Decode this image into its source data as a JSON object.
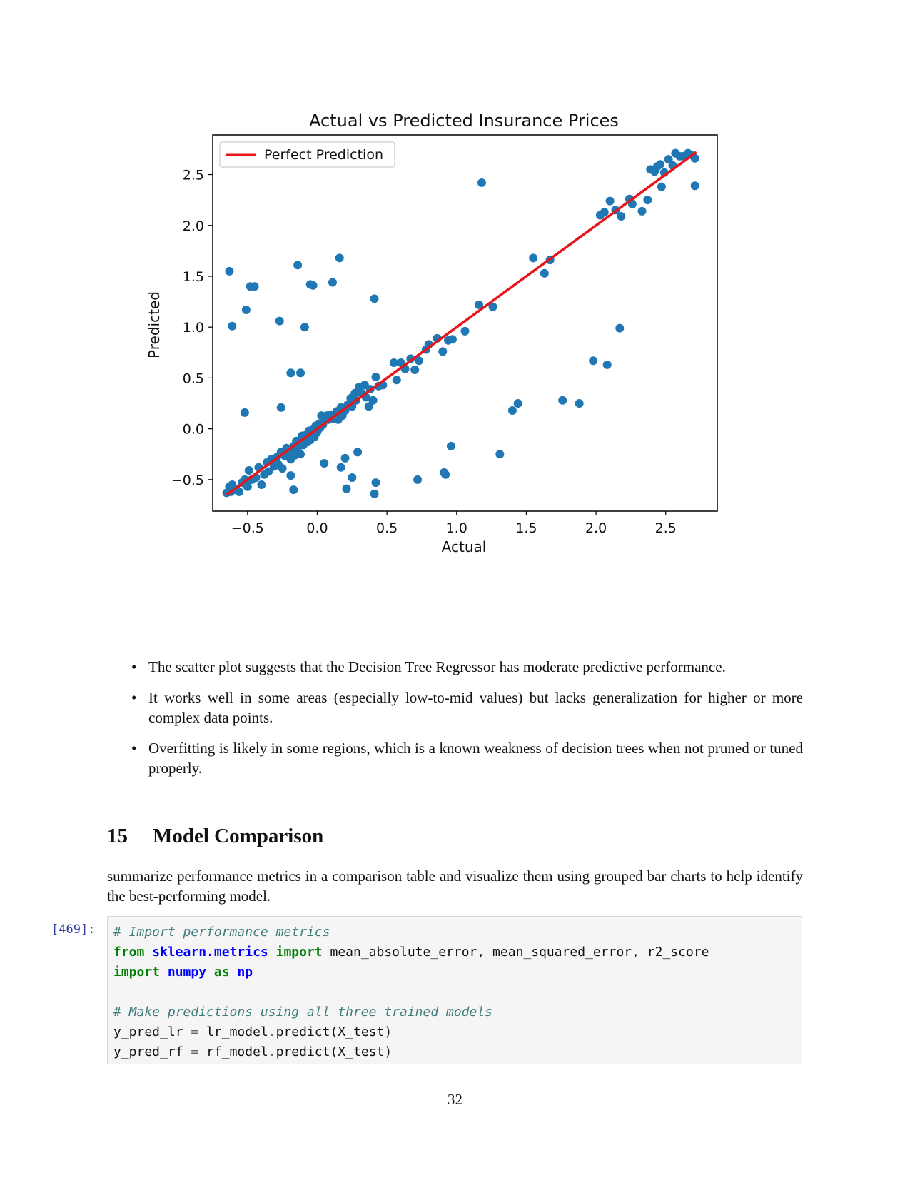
{
  "chart_data": {
    "type": "scatter",
    "title": "Actual vs Predicted Insurance Prices",
    "xlabel": "Actual",
    "ylabel": "Predicted",
    "xlim": [
      -0.75,
      2.87
    ],
    "ylim": [
      -0.81,
      2.89
    ],
    "xticks": [
      -0.5,
      0.0,
      0.5,
      1.0,
      1.5,
      2.0,
      2.5
    ],
    "yticks": [
      -0.5,
      0.0,
      0.5,
      1.0,
      1.5,
      2.0,
      2.5
    ],
    "xtick_labels": [
      "−0.5",
      "0.0",
      "0.5",
      "1.0",
      "1.5",
      "2.0",
      "2.5"
    ],
    "ytick_labels": [
      "−0.5",
      "0.0",
      "0.5",
      "1.0",
      "1.5",
      "2.0",
      "2.5"
    ],
    "legend": {
      "position": "top-left",
      "entries": [
        "Perfect Prediction"
      ]
    },
    "grid": false,
    "colors": {
      "points": "#1f77b4",
      "line": "#e8141a"
    },
    "line": {
      "name": "Perfect Prediction",
      "x": [
        -0.65,
        2.72
      ],
      "y": [
        -0.65,
        2.72
      ]
    },
    "points": [
      [
        -0.65,
        -0.63
      ],
      [
        -0.63,
        -0.57
      ],
      [
        -0.62,
        -0.62
      ],
      [
        -0.61,
        -0.55
      ],
      [
        -0.58,
        -0.6
      ],
      [
        -0.56,
        -0.62
      ],
      [
        -0.54,
        -0.53
      ],
      [
        -0.52,
        -0.5
      ],
      [
        -0.5,
        -0.57
      ],
      [
        -0.49,
        -0.41
      ],
      [
        -0.47,
        -0.5
      ],
      [
        -0.44,
        -0.48
      ],
      [
        -0.42,
        -0.38
      ],
      [
        -0.4,
        -0.55
      ],
      [
        -0.38,
        -0.45
      ],
      [
        -0.36,
        -0.33
      ],
      [
        -0.35,
        -0.42
      ],
      [
        -0.33,
        -0.3
      ],
      [
        -0.31,
        -0.37
      ],
      [
        -0.29,
        -0.28
      ],
      [
        -0.28,
        -0.35
      ],
      [
        -0.26,
        -0.23
      ],
      [
        -0.25,
        -0.39
      ],
      [
        -0.23,
        -0.27
      ],
      [
        -0.22,
        -0.19
      ],
      [
        -0.2,
        -0.25
      ],
      [
        -0.19,
        -0.3
      ],
      [
        -0.18,
        -0.2
      ],
      [
        -0.17,
        -0.17
      ],
      [
        -0.16,
        -0.26
      ],
      [
        -0.15,
        -0.12
      ],
      [
        -0.14,
        -0.22
      ],
      [
        -0.13,
        -0.15
      ],
      [
        -0.12,
        -0.25
      ],
      [
        -0.11,
        -0.07
      ],
      [
        -0.1,
        -0.16
      ],
      [
        -0.09,
        -0.1
      ],
      [
        -0.08,
        -0.06
      ],
      [
        -0.07,
        -0.13
      ],
      [
        -0.06,
        -0.02
      ],
      [
        -0.05,
        -0.11
      ],
      [
        -0.04,
        -0.04
      ],
      [
        -0.03,
        0.0
      ],
      [
        -0.02,
        -0.08
      ],
      [
        -0.01,
        0.03
      ],
      [
        0.0,
        -0.03
      ],
      [
        0.01,
        0.05
      ],
      [
        0.02,
        0.01
      ],
      [
        0.03,
        0.13
      ],
      [
        0.04,
        0.04
      ],
      [
        0.05,
        0.08
      ],
      [
        0.06,
        0.11
      ],
      [
        0.07,
        0.13
      ],
      [
        0.08,
        0.09
      ],
      [
        0.1,
        0.14
      ],
      [
        0.12,
        0.1
      ],
      [
        0.14,
        0.17
      ],
      [
        0.15,
        0.09
      ],
      [
        0.17,
        0.21
      ],
      [
        0.18,
        0.13
      ],
      [
        0.2,
        0.18
      ],
      [
        0.22,
        0.24
      ],
      [
        0.24,
        0.3
      ],
      [
        0.25,
        0.22
      ],
      [
        0.27,
        0.35
      ],
      [
        0.28,
        0.28
      ],
      [
        0.3,
        0.41
      ],
      [
        0.32,
        0.35
      ],
      [
        0.34,
        0.43
      ],
      [
        0.35,
        0.31
      ],
      [
        0.37,
        0.22
      ],
      [
        0.38,
        0.39
      ],
      [
        0.4,
        0.28
      ],
      [
        0.42,
        0.51
      ],
      [
        0.44,
        0.42
      ],
      [
        0.47,
        0.43
      ],
      [
        0.55,
        0.65
      ],
      [
        0.57,
        0.48
      ],
      [
        0.6,
        0.65
      ],
      [
        0.63,
        0.59
      ],
      [
        0.67,
        0.69
      ],
      [
        0.7,
        0.58
      ],
      [
        0.73,
        0.67
      ],
      [
        0.78,
        0.78
      ],
      [
        0.8,
        0.83
      ],
      [
        0.86,
        0.89
      ],
      [
        0.9,
        0.76
      ],
      [
        0.94,
        0.87
      ],
      [
        0.97,
        0.88
      ],
      [
        1.06,
        0.96
      ],
      [
        1.16,
        1.22
      ],
      [
        1.26,
        1.2
      ],
      [
        1.55,
        1.68
      ],
      [
        1.63,
        1.53
      ],
      [
        1.67,
        1.66
      ],
      [
        2.03,
        2.1
      ],
      [
        2.06,
        2.13
      ],
      [
        2.1,
        2.24
      ],
      [
        2.14,
        2.15
      ],
      [
        2.18,
        2.09
      ],
      [
        2.24,
        2.26
      ],
      [
        2.26,
        2.21
      ],
      [
        2.33,
        2.14
      ],
      [
        2.37,
        2.25
      ],
      [
        2.39,
        2.55
      ],
      [
        2.42,
        2.53
      ],
      [
        2.44,
        2.58
      ],
      [
        2.46,
        2.6
      ],
      [
        2.47,
        2.38
      ],
      [
        2.49,
        2.52
      ],
      [
        2.52,
        2.65
      ],
      [
        2.55,
        2.59
      ],
      [
        2.57,
        2.71
      ],
      [
        2.6,
        2.68
      ],
      [
        2.63,
        2.68
      ],
      [
        2.66,
        2.71
      ],
      [
        2.69,
        2.69
      ],
      [
        2.71,
        2.66
      ],
      [
        2.71,
        2.39
      ],
      [
        -0.63,
        1.55
      ],
      [
        -0.61,
        1.01
      ],
      [
        -0.51,
        1.17
      ],
      [
        -0.48,
        1.4
      ],
      [
        -0.45,
        1.4
      ],
      [
        -0.27,
        1.06
      ],
      [
        -0.14,
        1.61
      ],
      [
        -0.09,
        1.0
      ],
      [
        -0.05,
        1.42
      ],
      [
        -0.03,
        1.41
      ],
      [
        0.11,
        1.44
      ],
      [
        0.16,
        1.68
      ],
      [
        0.41,
        1.28
      ],
      [
        -0.19,
        0.55
      ],
      [
        -0.12,
        0.55
      ],
      [
        -0.52,
        0.16
      ],
      [
        -0.26,
        0.21
      ],
      [
        -0.19,
        -0.46
      ],
      [
        -0.17,
        -0.6
      ],
      [
        0.05,
        -0.34
      ],
      [
        0.17,
        -0.38
      ],
      [
        0.2,
        -0.29
      ],
      [
        0.21,
        -0.59
      ],
      [
        0.25,
        -0.48
      ],
      [
        0.29,
        -0.23
      ],
      [
        0.41,
        -0.64
      ],
      [
        0.42,
        -0.53
      ],
      [
        0.72,
        -0.5
      ],
      [
        0.91,
        -0.43
      ],
      [
        0.92,
        -0.45
      ],
      [
        0.96,
        -0.17
      ],
      [
        1.18,
        2.42
      ],
      [
        1.31,
        -0.25
      ],
      [
        1.4,
        0.18
      ],
      [
        1.44,
        0.25
      ],
      [
        1.76,
        0.28
      ],
      [
        1.88,
        0.25
      ],
      [
        1.98,
        0.67
      ],
      [
        2.08,
        0.63
      ],
      [
        2.17,
        0.99
      ]
    ]
  },
  "bullets": [
    "The scatter plot suggests that the Decision Tree Regressor has moderate predictive performance.",
    "It works well in some areas (especially low-to-mid values) but lacks generalization for higher or more complex data points.",
    "Overfitting is likely in some regions, which is a known weakness of decision trees when not pruned or tuned properly."
  ],
  "section": {
    "number": "15",
    "title": "Model Comparison"
  },
  "intro": "summarize performance metrics in a comparison table and visualize them using grouped bar charts to help identify the best-performing model.",
  "cell": {
    "prompt": "[469]:",
    "lines": [
      [
        {
          "t": "# Import performance metrics",
          "c": "cm"
        }
      ],
      [
        {
          "t": "from",
          "c": "kw"
        },
        {
          "t": " "
        },
        {
          "t": "sklearn.metrics",
          "c": "mod"
        },
        {
          "t": " "
        },
        {
          "t": "import",
          "c": "kw"
        },
        {
          "t": " mean_absolute_error, mean_squared_error, r2_score"
        }
      ],
      [
        {
          "t": "import",
          "c": "kw"
        },
        {
          "t": " "
        },
        {
          "t": "numpy",
          "c": "mod"
        },
        {
          "t": " "
        },
        {
          "t": "as",
          "c": "kw"
        },
        {
          "t": " "
        },
        {
          "t": "np",
          "c": "mod"
        }
      ],
      [],
      [
        {
          "t": "# Make predictions using all three trained models",
          "c": "cm"
        }
      ],
      [
        {
          "t": "y_pred_lr "
        },
        {
          "t": "=",
          "c": "op"
        },
        {
          "t": " lr_model"
        },
        {
          "t": ".",
          "c": "op"
        },
        {
          "t": "predict(X_test)"
        }
      ],
      [
        {
          "t": "y_pred_rf "
        },
        {
          "t": "=",
          "c": "op"
        },
        {
          "t": " rf_model"
        },
        {
          "t": ".",
          "c": "op"
        },
        {
          "t": "predict(X_test)"
        }
      ]
    ]
  },
  "page_number": "32"
}
